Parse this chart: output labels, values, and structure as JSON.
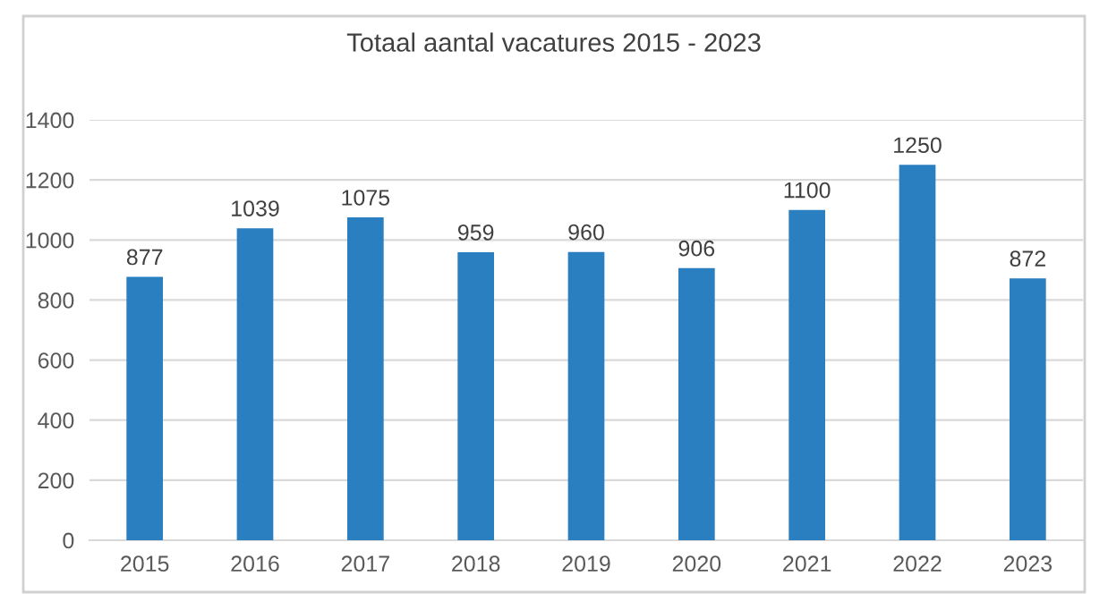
{
  "chart_data": {
    "type": "bar",
    "title": "Totaal aantal vacatures 2015 - 2023",
    "categories": [
      "2015",
      "2016",
      "2017",
      "2018",
      "2019",
      "2020",
      "2021",
      "2022",
      "2023"
    ],
    "values": [
      877,
      1039,
      1075,
      959,
      960,
      906,
      1100,
      1250,
      872
    ],
    "color": "#2a7fc1",
    "ylim": [
      0,
      1400
    ],
    "yticks": [
      0,
      200,
      400,
      600,
      800,
      1000,
      1200,
      1400
    ],
    "grid": "y",
    "data_labels": true
  }
}
